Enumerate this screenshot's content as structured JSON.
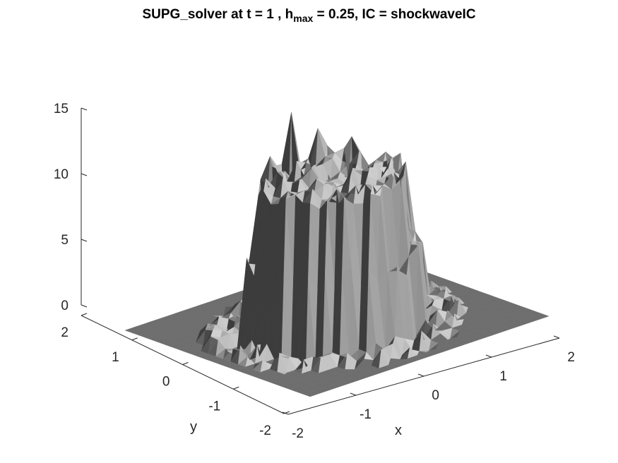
{
  "chart_data": {
    "type": "surface",
    "title": {
      "prefix": "SUPG_solver at t = 1 , h",
      "subscript": "max",
      "suffix": " = 0.25, IC = shockwaveIC"
    },
    "xlabel": "x",
    "ylabel": "y",
    "zlabel": "",
    "xlim": [
      -2,
      2
    ],
    "ylim": [
      -2,
      2
    ],
    "zlim": [
      0,
      15
    ],
    "x_ticks": [
      -2,
      -1,
      0,
      1,
      2
    ],
    "y_ticks": [
      -2,
      -1,
      0,
      1,
      2
    ],
    "z_ticks": [
      0,
      5,
      10,
      15
    ],
    "colormap": "gray",
    "surface_color": "#5a5a5a",
    "plateau": {
      "region": "disk centered near origin",
      "approx_height": 11,
      "peak_height": 15
    },
    "base_height": 0,
    "box": "off",
    "grid": "off"
  }
}
